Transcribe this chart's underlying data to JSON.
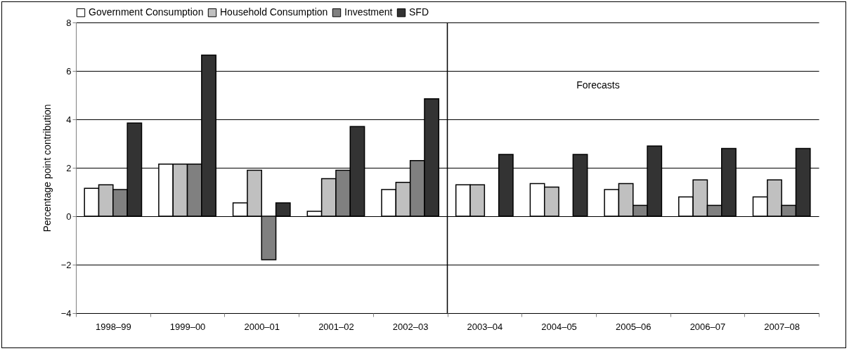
{
  "chart_data": {
    "type": "bar",
    "categories": [
      "1998–99",
      "1999–00",
      "2000–01",
      "2001–02",
      "2002–03",
      "2003–04",
      "2004–05",
      "2005–06",
      "2006–07",
      "2007–08"
    ],
    "series": [
      {
        "name": "Government Consumption",
        "color": "#ffffff",
        "values": [
          1.15,
          2.15,
          0.55,
          0.2,
          1.1,
          1.3,
          1.35,
          1.1,
          0.8,
          0.8
        ]
      },
      {
        "name": "Household Consumption",
        "color": "#c0c0c0",
        "values": [
          1.3,
          2.15,
          1.9,
          1.55,
          1.4,
          1.3,
          1.2,
          1.35,
          1.5,
          1.5
        ]
      },
      {
        "name": "Investment",
        "color": "#808080",
        "values": [
          1.1,
          2.15,
          -1.8,
          1.9,
          2.3,
          null,
          null,
          0.45,
          0.45,
          0.45
        ]
      },
      {
        "name": "SFD",
        "color": "#333333",
        "values": [
          3.85,
          6.65,
          0.55,
          3.7,
          4.85,
          2.55,
          2.55,
          2.9,
          2.8,
          2.8
        ]
      }
    ],
    "ylabel": "Percentage point contribution",
    "ylim": [
      -4,
      8
    ],
    "yticks": [
      -4,
      -2,
      0,
      2,
      4,
      6,
      8
    ],
    "grid": "y",
    "legend": "top",
    "ref_lines": [
      {
        "axis": "x",
        "value": "2003–04",
        "color": "#000000"
      }
    ],
    "annotations": [
      "Forecasts"
    ]
  }
}
